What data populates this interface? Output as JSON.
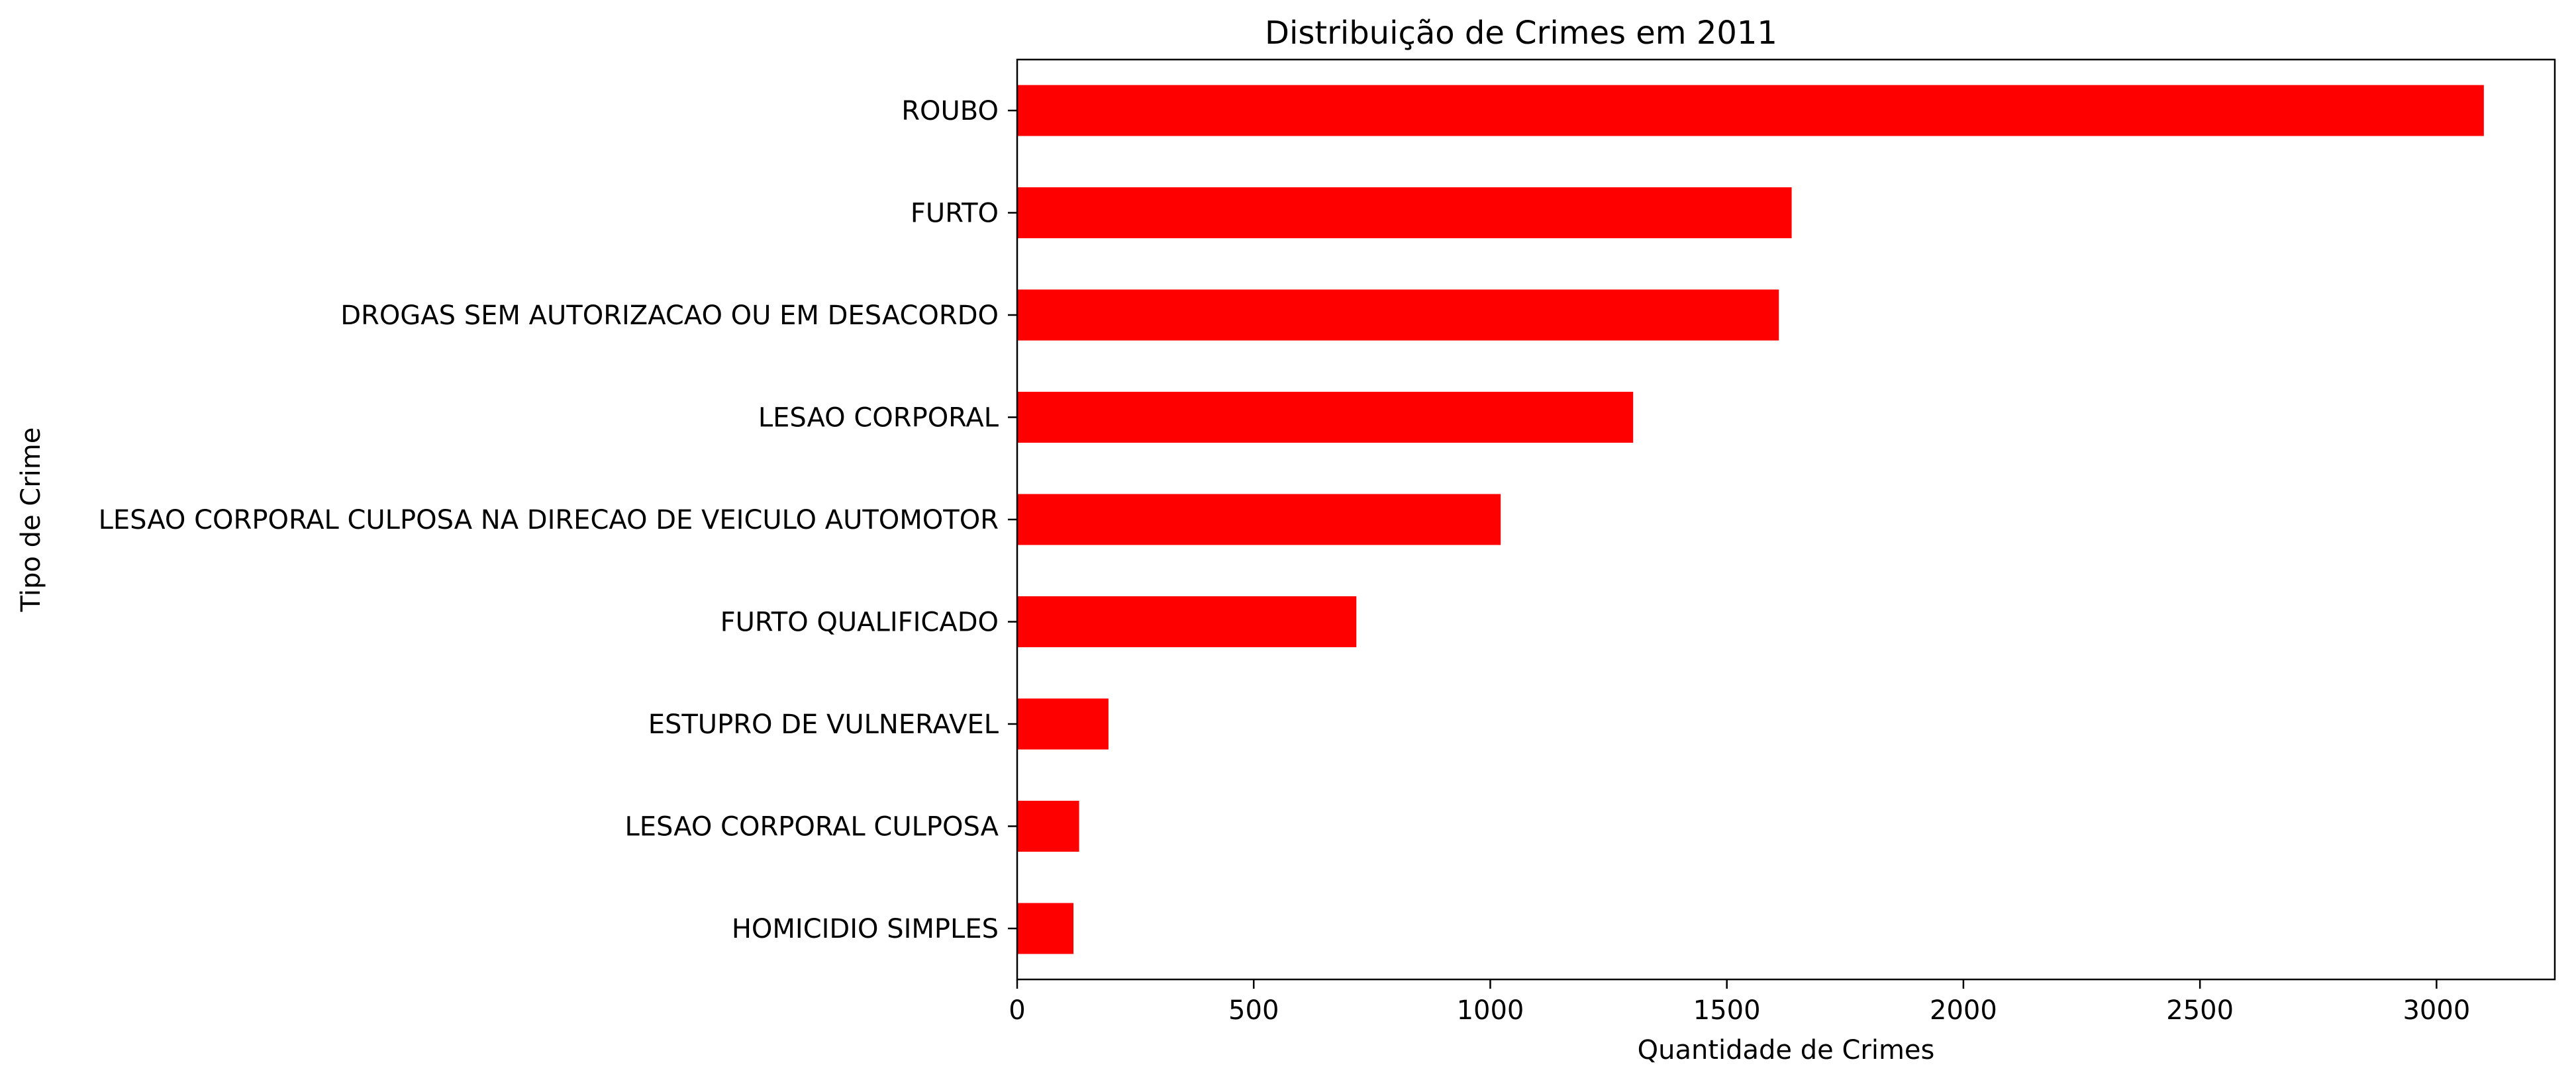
{
  "chart_data": {
    "type": "bar",
    "orientation": "horizontal",
    "title": "Distribuição de Crimes em 2011",
    "xlabel": "Quantidade de Crimes",
    "ylabel": "Tipo de Crime",
    "categories": [
      "ROUBO",
      "FURTO",
      "DROGAS SEM AUTORIZACAO OU EM DESACORDO",
      "LESAO CORPORAL",
      "LESAO CORPORAL CULPOSA NA DIRECAO DE VEICULO AUTOMOTOR",
      "FURTO QUALIFICADO",
      "ESTUPRO DE VULNERAVEL",
      "LESAO CORPORAL CULPOSA",
      "HOMICIDIO SIMPLES"
    ],
    "values": [
      3100,
      1637,
      1610,
      1302,
      1022,
      717,
      193,
      131,
      119
    ],
    "xlim": [
      0,
      3250
    ],
    "xticks": [
      "0",
      "500",
      "1000",
      "1500",
      "2000",
      "2500",
      "3000"
    ],
    "bar_color": "#ff0000",
    "grid": false,
    "legend": "none"
  }
}
